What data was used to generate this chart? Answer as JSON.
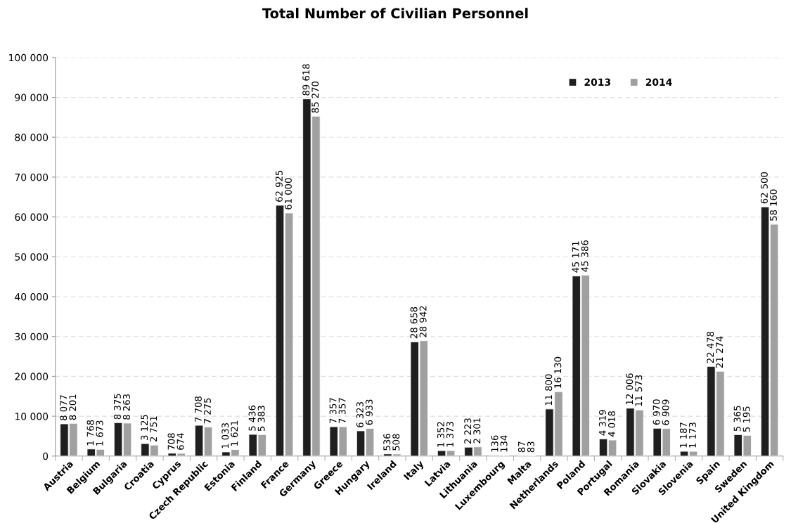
{
  "chart_data": {
    "type": "bar",
    "title": "Total Number of Civilian Personnel",
    "categories": [
      "Austria",
      "Belgium",
      "Bulgaria",
      "Croatia",
      "Cyprus",
      "Czech Republic",
      "Estonia",
      "Finland",
      "France",
      "Germany",
      "Greece",
      "Hungary",
      "Ireland",
      "Italy",
      "Latvia",
      "Lithuania",
      "Luxembourg",
      "Malta",
      "Netherlands",
      "Poland",
      "Portugal",
      "Romania",
      "Slovakia",
      "Slovenia",
      "Spain",
      "Sweden",
      "United Kingdom"
    ],
    "series": [
      {
        "name": "2013",
        "color": "#1f1f1f",
        "values": [
          8077,
          1768,
          8375,
          3125,
          708,
          7708,
          1033,
          5436,
          62925,
          89618,
          7357,
          6323,
          536,
          28658,
          1352,
          2223,
          136,
          87,
          11800,
          45171,
          4319,
          12006,
          6970,
          1187,
          22478,
          5365,
          62500
        ],
        "value_labels": [
          "8 077",
          "1 768",
          "8 375",
          "3 125",
          "708",
          "7 708",
          "1 033",
          "5 436",
          "62 925",
          "89 618",
          "7 357",
          "6 323",
          "536",
          "28 658",
          "1 352",
          "2 223",
          "136",
          "87",
          "11 800",
          "45 171",
          "4 319",
          "12 006",
          "6 970",
          "1 187",
          "22 478",
          "5 365",
          "62 500"
        ]
      },
      {
        "name": "2014",
        "color": "#a0a0a0",
        "values": [
          8201,
          1673,
          8263,
          2751,
          674,
          7275,
          1621,
          5383,
          61000,
          85270,
          7357,
          6933,
          508,
          28942,
          1373,
          2301,
          134,
          83,
          16130,
          45386,
          4018,
          11573,
          6909,
          1173,
          21274,
          5195,
          58160
        ],
        "value_labels": [
          "8 201",
          "1 673",
          "8 263",
          "2 751",
          "674",
          "7 275",
          "1 621",
          "5 383",
          "61 000",
          "85 270",
          "7 357",
          "6 933",
          "508",
          "28 942",
          "1 373",
          "2 301",
          "134",
          "83",
          "16 130",
          "45 386",
          "4 018",
          "11 573",
          "6 909",
          "1 173",
          "21 274",
          "5 195",
          "58 160"
        ]
      }
    ],
    "ylim": [
      0,
      100000
    ],
    "yticks": [
      {
        "value": 0,
        "label": "0"
      },
      {
        "value": 10000,
        "label": "10 000"
      },
      {
        "value": 20000,
        "label": "20 000"
      },
      {
        "value": 30000,
        "label": "30 000"
      },
      {
        "value": 40000,
        "label": "40 000"
      },
      {
        "value": 50000,
        "label": "50 000"
      },
      {
        "value": 60000,
        "label": "60 000"
      },
      {
        "value": 70000,
        "label": "70 000"
      },
      {
        "value": 80000,
        "label": "80 000"
      },
      {
        "value": 90000,
        "label": "90 000"
      },
      {
        "value": 100000,
        "label": "100 000"
      }
    ],
    "grid": "y",
    "legend": "top right"
  }
}
